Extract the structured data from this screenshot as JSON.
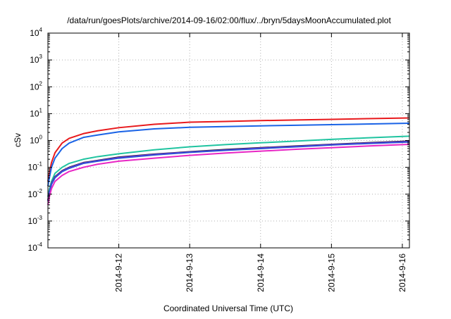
{
  "chart_data": {
    "type": "line",
    "title": "/data/run/goesPlots/archive/2014-09-16/02:00/flux/../bryn/5daysMoonAccumulated.plot",
    "xlabel": "Coordinated Universal Time (UTC)",
    "ylabel": "cSv",
    "yscale": "log",
    "ylim": [
      0.0001,
      10000
    ],
    "xlim": [
      0,
      5.1
    ],
    "x_unit": "days from 2014-09-11 00:00 UTC",
    "grid": true,
    "legend": "none",
    "yticks": [
      {
        "base": "10",
        "exp": "-4",
        "value": 0.0001
      },
      {
        "base": "10",
        "exp": "-3",
        "value": 0.001
      },
      {
        "base": "10",
        "exp": "-2",
        "value": 0.01
      },
      {
        "base": "10",
        "exp": "-1",
        "value": 0.1
      },
      {
        "base": "10",
        "exp": "0",
        "value": 1
      },
      {
        "base": "10",
        "exp": "1",
        "value": 10
      },
      {
        "base": "10",
        "exp": "2",
        "value": 100
      },
      {
        "base": "10",
        "exp": "3",
        "value": 1000
      },
      {
        "base": "10",
        "exp": "4",
        "value": 10000
      }
    ],
    "xticks": [
      {
        "label": "2014-9-12",
        "x": 1
      },
      {
        "label": "2014-9-13",
        "x": 2
      },
      {
        "label": "2014-9-14",
        "x": 3
      },
      {
        "label": "2014-9-15",
        "x": 4
      },
      {
        "label": "2014-9-16",
        "x": 5
      }
    ],
    "series": [
      {
        "color": "#e8191c",
        "points": [
          [
            0,
            0.03
          ],
          [
            0.02,
            0.06
          ],
          [
            0.05,
            0.15
          ],
          [
            0.1,
            0.35
          ],
          [
            0.2,
            0.8
          ],
          [
            0.3,
            1.2
          ],
          [
            0.5,
            1.8
          ],
          [
            0.7,
            2.3
          ],
          [
            1,
            3
          ],
          [
            1.5,
            4
          ],
          [
            2,
            4.8
          ],
          [
            2.5,
            5.1
          ],
          [
            3,
            5.5
          ],
          [
            3.5,
            5.8
          ],
          [
            4,
            6.1
          ],
          [
            4.5,
            6.5
          ],
          [
            5.1,
            6.9
          ]
        ]
      },
      {
        "color": "#1a63e6",
        "points": [
          [
            0,
            0.02
          ],
          [
            0.02,
            0.04
          ],
          [
            0.05,
            0.1
          ],
          [
            0.1,
            0.22
          ],
          [
            0.2,
            0.5
          ],
          [
            0.3,
            0.8
          ],
          [
            0.5,
            1.3
          ],
          [
            0.7,
            1.6
          ],
          [
            1,
            2.1
          ],
          [
            1.5,
            2.7
          ],
          [
            2,
            3.1
          ],
          [
            2.5,
            3.3
          ],
          [
            3,
            3.5
          ],
          [
            3.5,
            3.7
          ],
          [
            4,
            3.9
          ],
          [
            4.5,
            4.1
          ],
          [
            5.1,
            4.4
          ]
        ]
      },
      {
        "color": "#20c4a0",
        "points": [
          [
            0,
            0.008
          ],
          [
            0.02,
            0.015
          ],
          [
            0.05,
            0.03
          ],
          [
            0.1,
            0.06
          ],
          [
            0.2,
            0.1
          ],
          [
            0.3,
            0.14
          ],
          [
            0.5,
            0.2
          ],
          [
            0.7,
            0.25
          ],
          [
            1,
            0.32
          ],
          [
            1.5,
            0.45
          ],
          [
            2,
            0.58
          ],
          [
            2.5,
            0.7
          ],
          [
            3,
            0.82
          ],
          [
            3.5,
            0.95
          ],
          [
            4,
            1.1
          ],
          [
            4.5,
            1.25
          ],
          [
            5.1,
            1.45
          ]
        ]
      },
      {
        "color": "#1f1f1f",
        "points": [
          [
            0,
            0.006
          ],
          [
            0.02,
            0.012
          ],
          [
            0.05,
            0.025
          ],
          [
            0.1,
            0.045
          ],
          [
            0.2,
            0.075
          ],
          [
            0.3,
            0.1
          ],
          [
            0.5,
            0.15
          ],
          [
            0.7,
            0.18
          ],
          [
            1,
            0.24
          ],
          [
            1.5,
            0.31
          ],
          [
            2,
            0.38
          ],
          [
            2.5,
            0.46
          ],
          [
            3,
            0.54
          ],
          [
            3.5,
            0.62
          ],
          [
            4,
            0.72
          ],
          [
            4.5,
            0.82
          ],
          [
            5.1,
            0.95
          ]
        ]
      },
      {
        "color": "#8a2be2",
        "points": [
          [
            0,
            0.0058
          ],
          [
            0.02,
            0.0115
          ],
          [
            0.05,
            0.024
          ],
          [
            0.1,
            0.043
          ],
          [
            0.2,
            0.072
          ],
          [
            0.3,
            0.096
          ],
          [
            0.5,
            0.145
          ],
          [
            0.7,
            0.175
          ],
          [
            1,
            0.23
          ],
          [
            1.5,
            0.3
          ],
          [
            2,
            0.37
          ],
          [
            2.5,
            0.44
          ],
          [
            3,
            0.52
          ],
          [
            3.5,
            0.6
          ],
          [
            4,
            0.7
          ],
          [
            4.5,
            0.79
          ],
          [
            5.1,
            0.91
          ]
        ]
      },
      {
        "color": "#2d4fd6",
        "points": [
          [
            0,
            0.0055
          ],
          [
            0.02,
            0.011
          ],
          [
            0.05,
            0.023
          ],
          [
            0.1,
            0.041
          ],
          [
            0.2,
            0.069
          ],
          [
            0.3,
            0.092
          ],
          [
            0.5,
            0.14
          ],
          [
            0.7,
            0.17
          ],
          [
            1,
            0.22
          ],
          [
            1.5,
            0.29
          ],
          [
            2,
            0.36
          ],
          [
            2.5,
            0.43
          ],
          [
            3,
            0.5
          ],
          [
            3.5,
            0.58
          ],
          [
            4,
            0.68
          ],
          [
            4.5,
            0.77
          ],
          [
            5.1,
            0.88
          ]
        ]
      },
      {
        "color": "#e826c4",
        "points": [
          [
            0,
            0.004
          ],
          [
            0.02,
            0.008
          ],
          [
            0.05,
            0.016
          ],
          [
            0.1,
            0.03
          ],
          [
            0.2,
            0.05
          ],
          [
            0.3,
            0.07
          ],
          [
            0.5,
            0.1
          ],
          [
            0.7,
            0.13
          ],
          [
            1,
            0.17
          ],
          [
            1.5,
            0.22
          ],
          [
            2,
            0.28
          ],
          [
            2.5,
            0.34
          ],
          [
            3,
            0.4
          ],
          [
            3.5,
            0.47
          ],
          [
            4,
            0.54
          ],
          [
            4.5,
            0.62
          ],
          [
            5.1,
            0.72
          ]
        ]
      }
    ]
  }
}
